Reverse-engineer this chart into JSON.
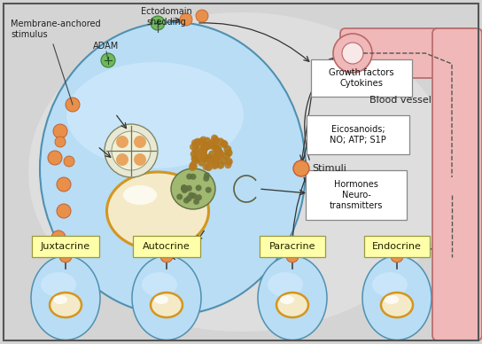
{
  "bg_color": "#d4d4d4",
  "border_color": "#555555",
  "cell_blue": "#b8ddf5",
  "cell_blue_light": "#d0eeff",
  "nucleus_outer": "#d4961e",
  "nucleus_inner": "#f5eac8",
  "orange_dot": "#e8904a",
  "green_dot": "#70b860",
  "blood_vessel_fill": "#f0b8b8",
  "blood_vessel_stroke": "#b86868",
  "label_bg": "#ffffaa",
  "label_border": "#999940",
  "box_bg": "#ffffff",
  "box_border": "#888888",
  "small_fontsize": 7.0,
  "label_fontsize": 8.0,
  "annotations": {
    "membrane_anchored": "Membrane-anchored\nstimulus",
    "ectodomain": "Ectodomain\nshedding",
    "adam": "ADAM",
    "blood_vessel": "Blood vessel",
    "stimuli": "Stimuli",
    "growth_factors": "Growth factors\nCytokines",
    "eicosanoids": "Eicosanoids;\nNO; ATP; S1P",
    "hormones": "Hormones\nNeuro-\ntransmitters",
    "juxtacrine": "Juxtacrine",
    "autocrine": "Autocrine",
    "paracrine": "Paracrine",
    "endocrine": "Endocrine"
  }
}
